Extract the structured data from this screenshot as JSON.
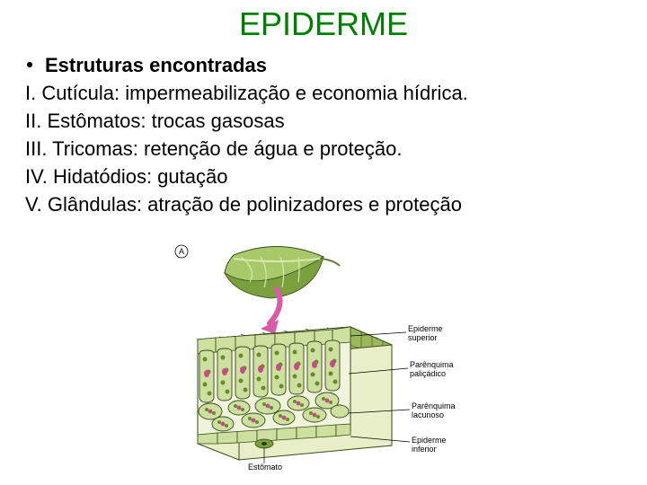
{
  "title": {
    "text": "EPIDERME",
    "color": "#008000"
  },
  "bullet": {
    "text": "Estruturas encontradas"
  },
  "items": [
    "I. Cutícula: impermeabilização e economia hídrica.",
    "II. Estômatos: trocas gasosas",
    "III. Tricomas: retenção de água e proteção.",
    "IV. Hidatódios: gutação",
    "V. Glândulas: atração de polinizadores e proteção"
  ],
  "figure": {
    "marker_label": "A",
    "leaf": {
      "fill_top": "#a8c96a",
      "fill_bottom": "#7aa03e",
      "vein": "#d9e8b0",
      "outline": "#3a4a1a"
    },
    "arrow": {
      "color": "#d85aa8"
    },
    "block": {
      "cell_fill": "#cde0a0",
      "cell_dark": "#7a9a3e",
      "outline": "#3a4a1a",
      "nucleus": "#c94a8a",
      "chloroplast": "#6a8a2a",
      "face_fill": "#e8efc8"
    },
    "labels": {
      "epiderme_superior": "Epiderme\nsuperior",
      "parenquima_palicadico": "Parênquima\npaliçádico",
      "parenquima_lacunoso": "Parênquima\nlacunoso",
      "epiderme_inferior": "Epiderme\ninferior",
      "estomato": "Estômato"
    },
    "label_color": "#000000",
    "line_color": "#000000"
  }
}
